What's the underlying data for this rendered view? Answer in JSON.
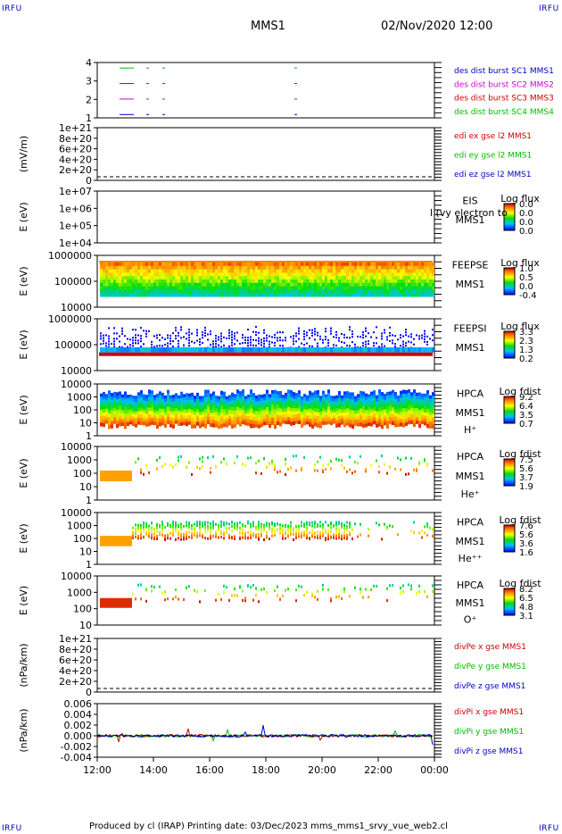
{
  "corners": {
    "tl": "IRFU",
    "tr": "IRFU",
    "bl": "IRFU",
    "br": "IRFU"
  },
  "header": {
    "title": "MMS1",
    "datetime": "02/Nov/2020 12:00"
  },
  "footer": {
    "text": "Produced by cl (IRAP)   Printing date: 03/Dec/2023   mms_mms1_srvy_vue_web2.cl"
  },
  "colors": {
    "red": "#cc0000",
    "green": "#00bb00",
    "blue": "#0000cc",
    "magenta": "#cc00cc"
  },
  "chart_data": [
    {
      "type": "scatter",
      "panel": "burst",
      "yticks": [
        "4",
        "3",
        "2",
        "1"
      ],
      "legend": [
        {
          "label": "des dist burst SC1 MMS1",
          "color": "#0000cc"
        },
        {
          "label": "des dist burst SC2 MMS2",
          "color": "#cc00cc"
        },
        {
          "label": "des dist burst SC3 MMS3",
          "color": "#cc0000"
        },
        {
          "label": "des dist burst SC4 MMS4",
          "color": "#00bb00"
        }
      ]
    },
    {
      "type": "line",
      "panel": "edi",
      "ylabel": "(mV/m)",
      "yticks": [
        "1e+21",
        "8e+20",
        "6e+20",
        "4e+20",
        "2e+20",
        "0"
      ],
      "legend": [
        {
          "label": "edi ex gse l2 MMS1",
          "color": "#cc0000"
        },
        {
          "label": "edi ey gse l2 MMS1",
          "color": "#00bb00"
        },
        {
          "label": "edi ez gse l2 MMS1",
          "color": "#0000cc"
        }
      ]
    },
    {
      "type": "heatmap",
      "panel": "eis",
      "ylabel": "E (eV)",
      "yticks": [
        "1e+07",
        "1e+06",
        "1e+05",
        "1e+04"
      ],
      "labels": [
        "EIS",
        "MMS1"
      ],
      "overlay": "l (vy electron to",
      "cbar_title": "Log flux",
      "cbar_ticks": [
        "0.0",
        "0.0",
        "0.0",
        "0.0"
      ]
    },
    {
      "type": "heatmap",
      "panel": "feeps_e",
      "ylabel": "E (eV)",
      "yticks": [
        "1000000",
        "100000",
        "10000"
      ],
      "labels": [
        "FEEPSE",
        "MMS1"
      ],
      "cbar_title": "Log flux",
      "cbar_ticks": [
        "1.0",
        "0.5",
        "0.0",
        "-0.4"
      ]
    },
    {
      "type": "heatmap",
      "panel": "feeps_i",
      "ylabel": "E (eV)",
      "yticks": [
        "1000000",
        "100000",
        "10000"
      ],
      "labels": [
        "FEEPSI",
        "MMS1"
      ],
      "cbar_title": "Log flux",
      "cbar_ticks": [
        "3.3",
        "2.3",
        "1.3",
        "0.2"
      ]
    },
    {
      "type": "heatmap",
      "panel": "hpca_h",
      "ylabel": "E (eV)",
      "yticks": [
        "10000",
        "1000",
        "100",
        "10",
        "1"
      ],
      "labels": [
        "HPCA",
        "MMS1",
        "H⁺"
      ],
      "cbar_title": "Log fdist",
      "cbar_ticks": [
        "9.2",
        "6.4",
        "3.5",
        "0.7"
      ]
    },
    {
      "type": "heatmap",
      "panel": "hpca_he",
      "ylabel": "E (eV)",
      "yticks": [
        "10000",
        "1000",
        "100",
        "10",
        "1"
      ],
      "labels": [
        "HPCA",
        "MMS1",
        "He⁺"
      ],
      "cbar_title": "Log fdist",
      "cbar_ticks": [
        "7.5",
        "5.6",
        "3.7",
        "1.9"
      ]
    },
    {
      "type": "heatmap",
      "panel": "hpca_hepp",
      "ylabel": "E (eV)",
      "yticks": [
        "10000",
        "1000",
        "100",
        "10",
        "1"
      ],
      "labels": [
        "HPCA",
        "MMS1",
        "He⁺⁺"
      ],
      "cbar_title": "Log fdist",
      "cbar_ticks": [
        "7.6",
        "5.6",
        "3.6",
        "1.6"
      ]
    },
    {
      "type": "heatmap",
      "panel": "hpca_o",
      "ylabel": "E (eV)",
      "yticks": [
        "10000",
        "1000",
        "100",
        "10"
      ],
      "labels": [
        "HPCA",
        "MMS1",
        "O⁺"
      ],
      "cbar_title": "Log fdist",
      "cbar_ticks": [
        "8.2",
        "6.5",
        "4.8",
        "3.1"
      ]
    },
    {
      "type": "line",
      "panel": "divpe",
      "ylabel": "(nPa/km)",
      "yticks": [
        "1e+21",
        "8e+20",
        "6e+20",
        "4e+20",
        "2e+20",
        "0"
      ],
      "legend": [
        {
          "label": "divPe x gse MMS1",
          "color": "#cc0000"
        },
        {
          "label": "divPe y gse MMS1",
          "color": "#00bb00"
        },
        {
          "label": "divPe z gse MMS1",
          "color": "#0000cc"
        }
      ]
    },
    {
      "type": "line",
      "panel": "divpi",
      "ylabel": "(nPa/km)",
      "yticks": [
        "0.006",
        "0.004",
        "0.002",
        "0.000",
        "-0.002",
        "-0.004"
      ],
      "legend": [
        {
          "label": "divPi x gse MMS1",
          "color": "#cc0000"
        },
        {
          "label": "divPi y gse MMS1",
          "color": "#00bb00"
        },
        {
          "label": "divPi z gse MMS1",
          "color": "#0000cc"
        }
      ]
    }
  ],
  "xaxis": {
    "ticks": [
      "12:00",
      "14:00",
      "16:00",
      "18:00",
      "20:00",
      "22:00",
      "00:00"
    ]
  }
}
